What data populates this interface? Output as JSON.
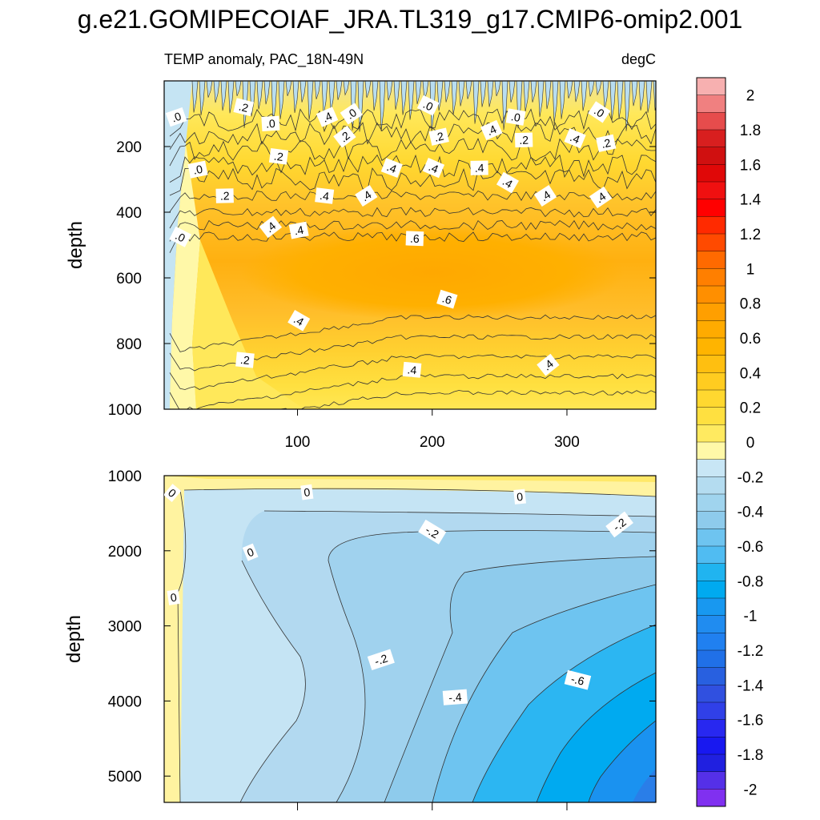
{
  "title": "g.e21.GOMIPECOIAF_JRA.TL319_g17.CMIP6-omip2.001",
  "chart_data": [
    {
      "type": "heatmap",
      "panel": "upper",
      "subtitle_left": "TEMP anomaly, PAC_18N-49N",
      "subtitle_right": "degC",
      "ylabel": "depth",
      "xlabel": "",
      "xlim": [
        1,
        366
      ],
      "ylim": [
        1000,
        0
      ],
      "xticks": [
        100,
        200,
        300
      ],
      "xtick_labels": [
        "100",
        "200",
        "300"
      ],
      "yticks": [
        200,
        400,
        600,
        800,
        1000
      ],
      "ytick_labels": [
        "200",
        "400",
        "600",
        "800",
        "1000"
      ],
      "bands": [
        {
          "y0": 0,
          "y1": 200,
          "value": 0.1
        },
        {
          "y0": 200,
          "y1": 350,
          "value": 0.3
        },
        {
          "y0": 350,
          "y1": 460,
          "value": 0.45
        },
        {
          "y0": 460,
          "y1": 720,
          "value": 0.55
        },
        {
          "y0": 720,
          "y1": 840,
          "value": 0.4
        },
        {
          "y0": 840,
          "y1": 930,
          "value": 0.3
        },
        {
          "y0": 930,
          "y1": 1000,
          "value": 0.2
        }
      ],
      "contour_labels": [
        {
          "x": 60,
          "y": 80,
          "text": ".2"
        },
        {
          "x": 10,
          "y": 110,
          "text": ".0"
        },
        {
          "x": 80,
          "y": 130,
          "text": ".0"
        },
        {
          "x": 122,
          "y": 110,
          "text": ".4"
        },
        {
          "x": 140,
          "y": 100,
          "text": ".0"
        },
        {
          "x": 197,
          "y": 75,
          "text": ".0"
        },
        {
          "x": 262,
          "y": 110,
          "text": ".0"
        },
        {
          "x": 324,
          "y": 95,
          "text": ".0"
        },
        {
          "x": 135,
          "y": 170,
          "text": ".2"
        },
        {
          "x": 205,
          "y": 170,
          "text": ".2"
        },
        {
          "x": 244,
          "y": 150,
          "text": ".4"
        },
        {
          "x": 268,
          "y": 180,
          "text": ".2"
        },
        {
          "x": 306,
          "y": 175,
          "text": ".4"
        },
        {
          "x": 329,
          "y": 190,
          "text": ".2"
        },
        {
          "x": 86,
          "y": 230,
          "text": ".2"
        },
        {
          "x": 26,
          "y": 270,
          "text": ".0"
        },
        {
          "x": 170,
          "y": 265,
          "text": ".4"
        },
        {
          "x": 201,
          "y": 265,
          "text": ".4"
        },
        {
          "x": 235,
          "y": 265,
          "text": ".4"
        },
        {
          "x": 256,
          "y": 310,
          "text": ".4"
        },
        {
          "x": 46,
          "y": 350,
          "text": ".2"
        },
        {
          "x": 120,
          "y": 350,
          "text": ".4"
        },
        {
          "x": 151,
          "y": 350,
          "text": ".4"
        },
        {
          "x": 284,
          "y": 350,
          "text": ".4"
        },
        {
          "x": 325,
          "y": 355,
          "text": ".4"
        },
        {
          "x": 13,
          "y": 475,
          "text": ".0"
        },
        {
          "x": 80,
          "y": 445,
          "text": ".4"
        },
        {
          "x": 101,
          "y": 455,
          "text": ".4"
        },
        {
          "x": 187,
          "y": 480,
          "text": ".6"
        },
        {
          "x": 211,
          "y": 665,
          "text": ".6"
        },
        {
          "x": 101,
          "y": 730,
          "text": ".4"
        },
        {
          "x": 61,
          "y": 850,
          "text": ".2"
        },
        {
          "x": 185,
          "y": 880,
          "text": ".4"
        },
        {
          "x": 286,
          "y": 865,
          "text": ".4"
        }
      ]
    },
    {
      "type": "heatmap",
      "panel": "lower",
      "ylabel": "depth",
      "xlabel": "",
      "xlim": [
        1,
        366
      ],
      "ylim": [
        5350,
        1000
      ],
      "xticks": [
        100,
        200,
        300
      ],
      "yticks": [
        1000,
        2000,
        3000,
        4000,
        5000
      ],
      "ytick_labels": [
        "1000",
        "2000",
        "3000",
        "4000",
        "5000"
      ],
      "contour_labels": [
        {
          "x": 8,
          "y": 2620,
          "text": "0"
        },
        {
          "x": 7,
          "y": 1230,
          "text": "0"
        },
        {
          "x": 65,
          "y": 2020,
          "text": "0"
        },
        {
          "x": 107,
          "y": 1220,
          "text": "0"
        },
        {
          "x": 265,
          "y": 1280,
          "text": "0"
        },
        {
          "x": 200,
          "y": 1750,
          "text": "-.2"
        },
        {
          "x": 339,
          "y": 1650,
          "text": "-.2"
        },
        {
          "x": 162,
          "y": 3450,
          "text": "-.2"
        },
        {
          "x": 217,
          "y": 3950,
          "text": "-.4"
        },
        {
          "x": 308,
          "y": 3720,
          "text": "-.6"
        }
      ]
    }
  ],
  "colorbar": {
    "labels": [
      "2",
      "1.8",
      "1.6",
      "1.4",
      "1.2",
      "1",
      "0.8",
      "0.6",
      "0.4",
      "0.2",
      "0",
      "-0.2",
      "-0.4",
      "-0.6",
      "-0.8",
      "-1",
      "-1.2",
      "-1.4",
      "-1.6",
      "-1.8",
      "-2"
    ],
    "colors": [
      "#f7b0b0",
      "#f08080",
      "#e64c4c",
      "#d81f1f",
      "#d01010",
      "#e00808",
      "#f01010",
      "#ff0000",
      "#ff2a00",
      "#ff4a00",
      "#ff6a00",
      "#ff7f00",
      "#ff8f00",
      "#ff9f00",
      "#ffab00",
      "#ffb400",
      "#ffbf10",
      "#ffcc20",
      "#ffd830",
      "#ffe040",
      "#ffea60",
      "#fff8a8",
      "#c8e6f5",
      "#b4dcf0",
      "#a0d4ee",
      "#8ecbec",
      "#6ec4f0",
      "#50bcf2",
      "#20b4f0",
      "#00aaf0",
      "#1898f0",
      "#208cf0",
      "#2080f0",
      "#2070e8",
      "#2860e0",
      "#3050e0",
      "#3040e8",
      "#2828f0",
      "#1818f0",
      "#2020e0",
      "#5530e8",
      "#8030f0"
    ]
  }
}
